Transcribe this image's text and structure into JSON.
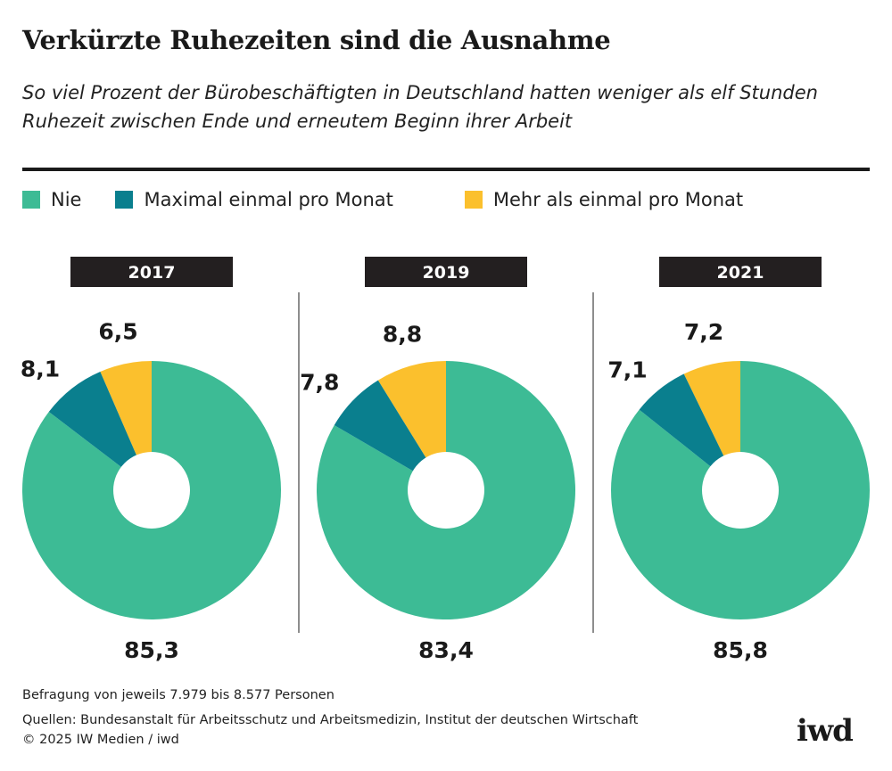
{
  "title": "Verkürzte Ruhezeiten sind die Ausnahme",
  "subtitle": "So viel Prozent der Bürobeschäftigten in Deutschland hatten weniger als elf Stunden Ruhezeit zwischen Ende und erneutem Beginn ihrer Arbeit",
  "legend": [
    {
      "label": "Nie",
      "color": "#3dbb95"
    },
    {
      "label": "Maximal einmal pro Monat",
      "color": "#0a7f8e"
    },
    {
      "label": "Mehr als einmal pro Monat",
      "color": "#fbc02d"
    }
  ],
  "chart_data": {
    "type": "pie",
    "donut": true,
    "charts": [
      {
        "year": "2017",
        "slices": [
          {
            "category": "Nie",
            "value": 85.3,
            "label": "85,3"
          },
          {
            "category": "Maximal einmal pro Monat",
            "value": 8.1,
            "label": "8,1"
          },
          {
            "category": "Mehr als einmal pro Monat",
            "value": 6.5,
            "label": "6,5"
          }
        ]
      },
      {
        "year": "2019",
        "slices": [
          {
            "category": "Nie",
            "value": 83.4,
            "label": "83,4"
          },
          {
            "category": "Maximal einmal pro Monat",
            "value": 7.8,
            "label": "7,8"
          },
          {
            "category": "Mehr als einmal pro Monat",
            "value": 8.8,
            "label": "8,8"
          }
        ]
      },
      {
        "year": "2021",
        "slices": [
          {
            "category": "Nie",
            "value": 85.8,
            "label": "85,8"
          },
          {
            "category": "Maximal einmal pro Monat",
            "value": 7.1,
            "label": "7,1"
          },
          {
            "category": "Mehr als einmal pro Monat",
            "value": 7.2,
            "label": "7,2"
          }
        ]
      }
    ]
  },
  "footer": {
    "note": "Befragung von jeweils 7.979 bis 8.577 Personen",
    "sources": "Quellen: Bundesanstalt für Arbeitsschutz und Arbeitsmedizin, Institut der deutschen Wirtschaft",
    "copyright": "© 2025 IW Medien / iwd"
  },
  "logo": "iwd"
}
